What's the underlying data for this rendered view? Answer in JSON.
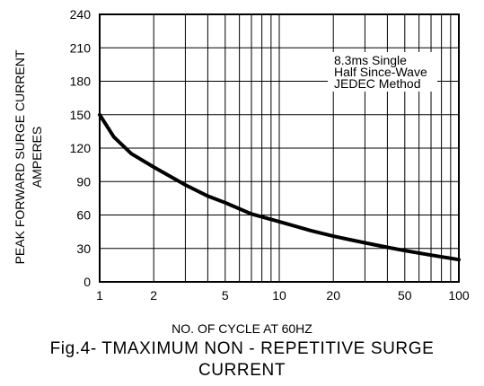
{
  "chart_data": {
    "type": "line",
    "x_scale": "log",
    "y_scale": "linear",
    "xlim": [
      1,
      100
    ],
    "ylim": [
      0,
      240
    ],
    "x_ticks": [
      1,
      2,
      5,
      10,
      20,
      50,
      100
    ],
    "x_tick_labels": [
      "1",
      "2",
      "5",
      "10",
      "20",
      "50",
      "100"
    ],
    "y_ticks": [
      0,
      30,
      60,
      90,
      120,
      150,
      180,
      210,
      240
    ],
    "y_tick_labels": [
      "0",
      "30",
      "60",
      "90",
      "120",
      "150",
      "180",
      "210",
      "240"
    ],
    "grid": true,
    "xlabel": "NO. OF CYCLE AT 60HZ",
    "ylabel_line1": "PEAK FORWARD SURGE CURRENT",
    "ylabel_line2": "AMPERES",
    "annotation": [
      "8.3ms Single",
      "Half Since-Wave",
      "JEDEC Method"
    ],
    "title_line1": "Fig.4- TMAXIMUM NON - REPETITIVE SURGE",
    "title_line2": "CURRENT",
    "series": [
      {
        "x": [
          1,
          1.2,
          1.5,
          2,
          3,
          4,
          5,
          7,
          10,
          15,
          20,
          30,
          40,
          50,
          70,
          100
        ],
        "y": [
          150,
          130,
          115,
          103,
          87,
          77,
          71,
          61,
          54,
          46,
          41,
          35,
          31,
          28,
          24,
          20
        ]
      }
    ]
  }
}
